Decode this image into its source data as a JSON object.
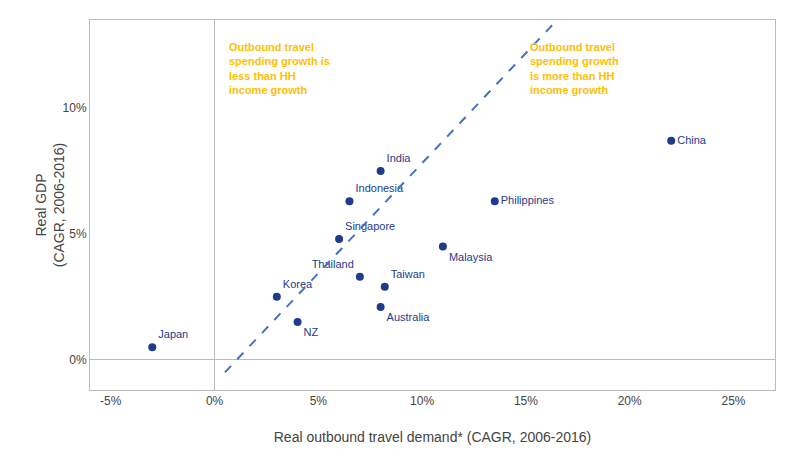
{
  "chart_data": {
    "type": "scatter",
    "xlabel": "Real outbound travel demand* (CAGR, 2006-2016)",
    "ylabel": "Real GDP\n(CAGR, 2006-2016)",
    "xlim": [
      -6,
      27
    ],
    "ylim": [
      -1.2,
      13.5
    ],
    "xticks": [
      {
        "value": -5,
        "label": "-5%"
      },
      {
        "value": 0,
        "label": "0%"
      },
      {
        "value": 5,
        "label": "5%"
      },
      {
        "value": 10,
        "label": "10%"
      },
      {
        "value": 15,
        "label": "15%"
      },
      {
        "value": 20,
        "label": "20%"
      },
      {
        "value": 25,
        "label": "25%"
      }
    ],
    "yticks": [
      {
        "value": 0,
        "label": "0%"
      },
      {
        "value": 5,
        "label": "5%"
      },
      {
        "value": 10,
        "label": "10%"
      }
    ],
    "grid": false,
    "series": [
      {
        "type": "scatter",
        "color": "#1F3B8C",
        "x": [
          -3,
          3,
          4,
          6,
          6.5,
          7,
          8.2,
          8,
          8,
          11,
          13.5,
          22
        ],
        "values": [
          0.5,
          2.5,
          1.5,
          4.8,
          6.3,
          3.3,
          2.9,
          2.1,
          7.5,
          4.5,
          6.3,
          8.7
        ],
        "labels": [
          "Japan",
          "Korea",
          "NZ",
          "Singapore",
          "Indonesia",
          "Thailand",
          "Taiwan",
          "Australia",
          "India",
          "Malaysia",
          "Philippines",
          "China"
        ]
      },
      {
        "type": "line",
        "color": "#4472C4",
        "line_style": "dashed",
        "x": [
          0.5,
          16.5
        ],
        "values": [
          -0.5,
          13.5
        ]
      }
    ],
    "annotations": [
      {
        "text": "Outbound travel\nspending growth is\nless than HH\nincome growth",
        "color": "#FFC000"
      },
      {
        "text": "Outbound travel\nspending growth\nis more than HH\nincome growth",
        "color": "#FFC000"
      }
    ]
  }
}
